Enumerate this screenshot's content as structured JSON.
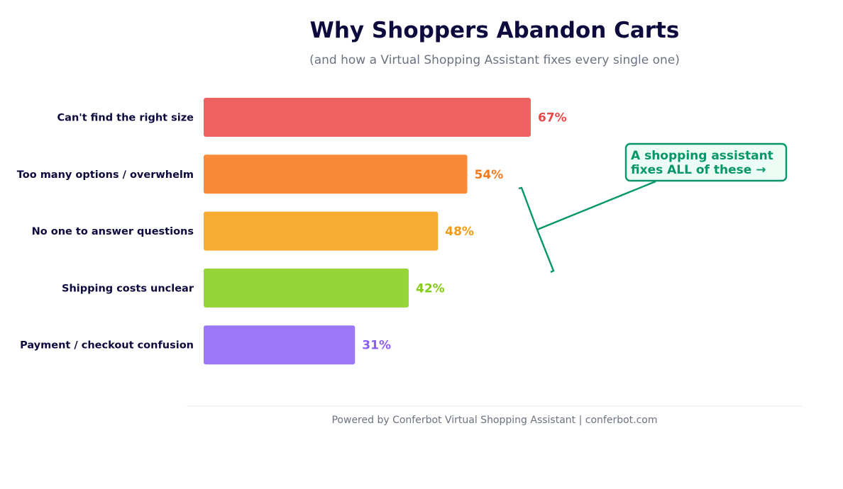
{
  "chart_data": {
    "type": "bar",
    "orientation": "horizontal",
    "title": "Why Shoppers Abandon Carts",
    "subtitle": "(and how a Virtual Shopping Assistant fixes every single one)",
    "categories": [
      "Can't find the right size",
      "Too many options / overwhelm",
      "No one to answer questions",
      "Shipping costs unclear",
      "Payment / checkout confusion"
    ],
    "values": [
      67,
      54,
      48,
      42,
      31
    ],
    "value_labels": [
      "67%",
      "54%",
      "48%",
      "42%",
      "31%"
    ],
    "bar_colors": [
      "#f06262",
      "#f98a38",
      "#f6ac31",
      "#96d438",
      "#9b78f8"
    ],
    "label_colors": [
      "#e84848",
      "#f47a1a",
      "#f29a0e",
      "#84cc16",
      "#8b5cf6"
    ],
    "xlim": [
      0,
      100
    ],
    "grid": false,
    "xlabel": "",
    "ylabel": "",
    "annotation": {
      "line1": "A shopping assistant",
      "line2": "fixes ALL of these  →",
      "color": "#059669",
      "box_fill": "#ecfdf5"
    },
    "footer": "Powered by Conferbot Virtual Shopping Assistant  |  conferbot.com"
  }
}
